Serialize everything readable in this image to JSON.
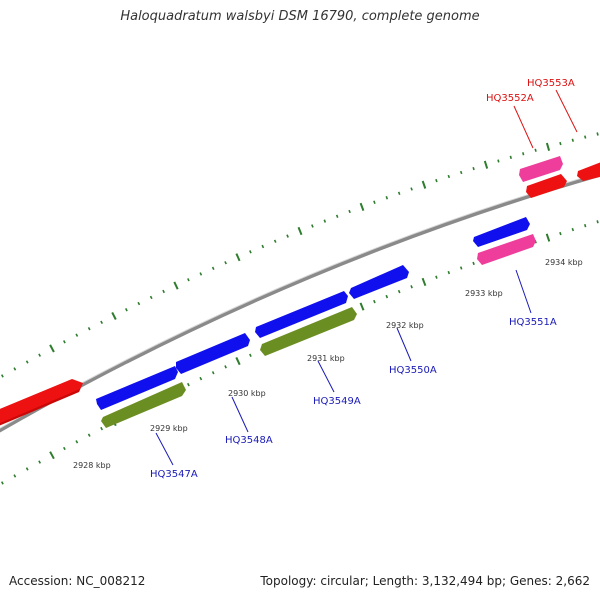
{
  "title": "Haloquadratum walsbyi DSM 16790, complete genome",
  "footer": {
    "accession": "Accession: NC_008212",
    "stats": "Topology: circular; Length: 3,132,494 bp; Genes: 2,662"
  },
  "colors": {
    "backbone": "#8a8a8a",
    "gene_forward": "#1010ee",
    "gene_other": "#6b8e23",
    "gene_red": "#ee1111",
    "gene_pink": "#ee3d9b",
    "tick": "#2e7d2e",
    "label_blue": "#1a1ab8",
    "label_red": "#dd1111"
  },
  "tick_labels": [
    "2928 kbp",
    "2929 kbp",
    "2930 kbp",
    "2931 kbp",
    "2932 kbp",
    "2933 kbp",
    "2934 kbp"
  ],
  "gene_labels": {
    "hq3547a": "HQ3547A",
    "hq3548a": "HQ3548A",
    "hq3549a": "HQ3549A",
    "hq3550a": "HQ3550A",
    "hq3551a": "HQ3551A",
    "hq3552a": "HQ3552A",
    "hq3553a": "HQ3553A"
  }
}
